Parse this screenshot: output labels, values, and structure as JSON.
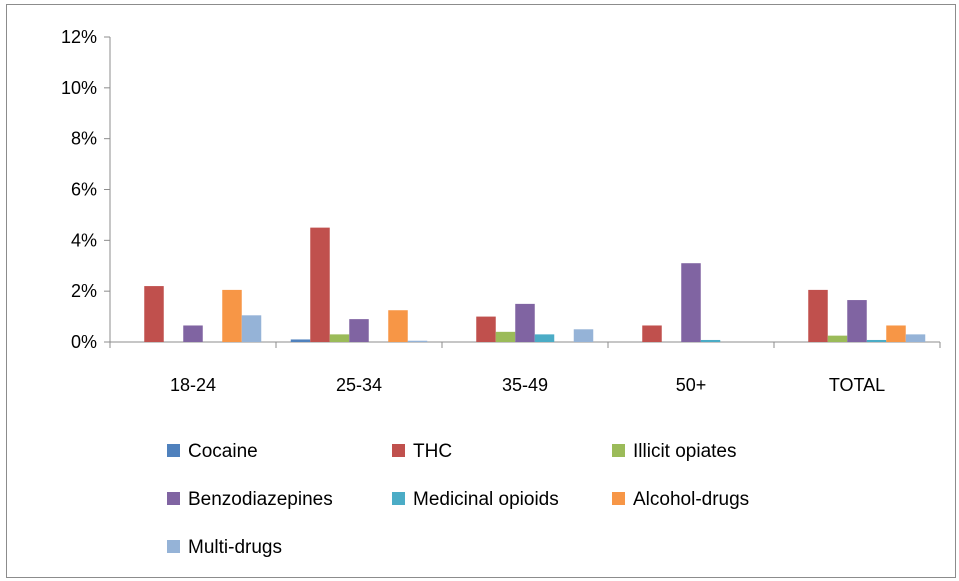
{
  "chart_data": {
    "type": "bar",
    "title": "",
    "xlabel": "",
    "ylabel": "",
    "categories": [
      "18-24",
      "25-34",
      "35-49",
      "50+",
      "TOTAL"
    ],
    "ylim": [
      0,
      12
    ],
    "y_ticks": [
      "0%",
      "2%",
      "4%",
      "6%",
      "8%",
      "10%",
      "12%"
    ],
    "y_tick_values": [
      0,
      2,
      4,
      6,
      8,
      10,
      12
    ],
    "grid": false,
    "legend_position": "bottom",
    "series": [
      {
        "name": "Cocaine",
        "color": "#4F81BD",
        "values": [
          0,
          0.1,
          0,
          0,
          0
        ]
      },
      {
        "name": "THC",
        "color": "#C0504D",
        "values": [
          2.2,
          4.5,
          1.0,
          0.65,
          2.05
        ]
      },
      {
        "name": "Illicit opiates",
        "color": "#9BBB59",
        "values": [
          0,
          0.3,
          0.4,
          0,
          0.25
        ]
      },
      {
        "name": "Benzodiazepines",
        "color": "#8064A2",
        "values": [
          0.65,
          0.9,
          1.5,
          3.1,
          1.65
        ]
      },
      {
        "name": "Medicinal opioids",
        "color": "#4BACC6",
        "values": [
          0,
          0,
          0.3,
          0.08,
          0.08
        ]
      },
      {
        "name": "Alcohol-drugs",
        "color": "#F79646",
        "values": [
          2.05,
          1.25,
          0,
          0,
          0.65
        ]
      },
      {
        "name": "Multi-drugs",
        "color": "#95B3D7",
        "values": [
          1.05,
          0.05,
          0.5,
          0,
          0.3
        ]
      }
    ]
  }
}
